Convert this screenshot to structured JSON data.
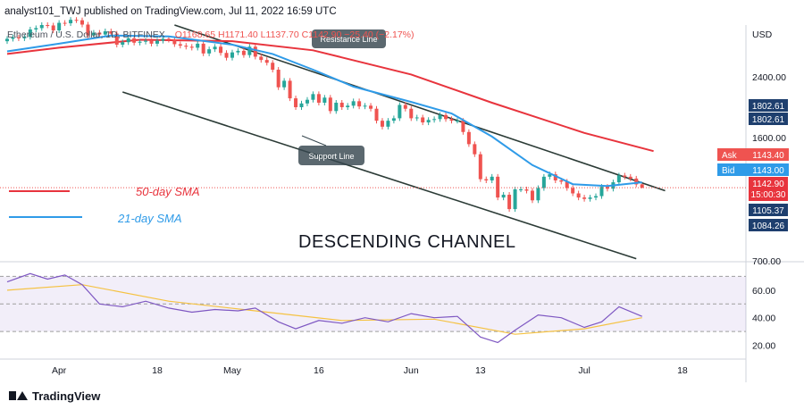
{
  "header": {
    "published": "analyst101_TWJ published on TradingView.com, Jul 11, 2022 16:59 UTC",
    "symbol": "Ethereum / U.S. Dollar, 1D, BITFINEX",
    "ohlc": "O1168.65  H1171.40  L1137.70  C1142.90  −25.40 (−2.17%)"
  },
  "currency": "USD",
  "annotations": {
    "resistance": "Resistance Line",
    "support": "Support Line",
    "channel": "DESCENDING CHANNEL",
    "sma50": "50-day SMA",
    "sma21": "21-day SMA"
  },
  "colors": {
    "sma50": "#e8343d",
    "sma21": "#2f9be8",
    "up": "#26a69a",
    "down": "#ef5350",
    "channel": "#2b3b36",
    "rsi": "#7e57c2",
    "rsi_ma": "#f5c242",
    "ask": "#ef5350",
    "bid": "#2f9be8",
    "level_box": "#1e3f6e",
    "price_box": "#e8343d"
  },
  "price_labels": {
    "ask_label": "Ask",
    "ask_value": "1143.40",
    "bid_label": "Bid",
    "bid_value": "1143.00",
    "last": "1142.90",
    "countdown": "15:00:30",
    "levels": [
      "1802.61",
      "1802.61",
      "1105.37",
      "1084.26"
    ]
  },
  "footer": {
    "brand": "TradingView"
  },
  "chart_data": {
    "type": "candlestick",
    "price_axis": {
      "ticks": [
        2400,
        1600,
        700
      ],
      "tick_labels": [
        "2400.00",
        "1600.00",
        "700.00"
      ],
      "scale": "log",
      "ylim": [
        700,
        3400
      ]
    },
    "rsi_axis": {
      "ticks": [
        60,
        40,
        20
      ],
      "tick_labels": [
        "60.00",
        "40.00",
        "20.00"
      ],
      "ylim": [
        10,
        80
      ],
      "band": [
        30,
        70
      ]
    },
    "x_axis": {
      "tick_labels": [
        "Apr",
        "18",
        "May",
        "16",
        "Jun",
        "13",
        "Jul",
        "18"
      ],
      "tick_dates": [
        "2022-04-01",
        "2022-04-18",
        "2022-05-01",
        "2022-05-16",
        "2022-06-01",
        "2022-06-13",
        "2022-07-01",
        "2022-07-18"
      ],
      "range": [
        "2022-03-23",
        "2022-07-29"
      ]
    },
    "candles": [
      {
        "date": "2022-03-23",
        "open": 3050,
        "close": 3100
      },
      {
        "date": "2022-03-24",
        "open": 3100,
        "close": 3130
      },
      {
        "date": "2022-03-25",
        "open": 3130,
        "close": 3110
      },
      {
        "date": "2022-03-26",
        "open": 3110,
        "close": 3140
      },
      {
        "date": "2022-03-27",
        "open": 3140,
        "close": 3300
      },
      {
        "date": "2022-03-28",
        "open": 3300,
        "close": 3330
      },
      {
        "date": "2022-03-29",
        "open": 3330,
        "close": 3400
      },
      {
        "date": "2022-03-30",
        "open": 3400,
        "close": 3390
      },
      {
        "date": "2022-03-31",
        "open": 3390,
        "close": 3280
      },
      {
        "date": "2022-04-01",
        "open": 3280,
        "close": 3450
      },
      {
        "date": "2022-04-02",
        "open": 3450,
        "close": 3440
      },
      {
        "date": "2022-04-03",
        "open": 3440,
        "close": 3520
      },
      {
        "date": "2022-04-04",
        "open": 3520,
        "close": 3510
      },
      {
        "date": "2022-04-05",
        "open": 3510,
        "close": 3410
      },
      {
        "date": "2022-04-06",
        "open": 3410,
        "close": 3170
      },
      {
        "date": "2022-04-07",
        "open": 3170,
        "close": 3230
      },
      {
        "date": "2022-04-08",
        "open": 3230,
        "close": 3190
      },
      {
        "date": "2022-04-09",
        "open": 3190,
        "close": 3260
      },
      {
        "date": "2022-04-10",
        "open": 3260,
        "close": 3210
      },
      {
        "date": "2022-04-11",
        "open": 3210,
        "close": 2980
      },
      {
        "date": "2022-04-12",
        "open": 2980,
        "close": 3030
      },
      {
        "date": "2022-04-13",
        "open": 3030,
        "close": 3110
      },
      {
        "date": "2022-04-14",
        "open": 3110,
        "close": 3020
      },
      {
        "date": "2022-04-15",
        "open": 3020,
        "close": 3040
      },
      {
        "date": "2022-04-16",
        "open": 3040,
        "close": 3060
      },
      {
        "date": "2022-04-17",
        "open": 3060,
        "close": 3000
      },
      {
        "date": "2022-04-18",
        "open": 3000,
        "close": 3060
      },
      {
        "date": "2022-04-19",
        "open": 3060,
        "close": 3100
      },
      {
        "date": "2022-04-20",
        "open": 3100,
        "close": 3080
      },
      {
        "date": "2022-04-21",
        "open": 3080,
        "close": 2990
      },
      {
        "date": "2022-04-22",
        "open": 2990,
        "close": 2960
      },
      {
        "date": "2022-04-23",
        "open": 2960,
        "close": 2940
      },
      {
        "date": "2022-04-24",
        "open": 2940,
        "close": 2920
      },
      {
        "date": "2022-04-25",
        "open": 2920,
        "close": 3000
      },
      {
        "date": "2022-04-26",
        "open": 3000,
        "close": 2810
      },
      {
        "date": "2022-04-27",
        "open": 2810,
        "close": 2890
      },
      {
        "date": "2022-04-28",
        "open": 2890,
        "close": 2940
      },
      {
        "date": "2022-04-29",
        "open": 2940,
        "close": 2820
      },
      {
        "date": "2022-04-30",
        "open": 2820,
        "close": 2730
      },
      {
        "date": "2022-05-01",
        "open": 2730,
        "close": 2830
      },
      {
        "date": "2022-05-02",
        "open": 2830,
        "close": 2860
      },
      {
        "date": "2022-05-03",
        "open": 2860,
        "close": 2780
      },
      {
        "date": "2022-05-04",
        "open": 2780,
        "close": 2940
      },
      {
        "date": "2022-05-05",
        "open": 2940,
        "close": 2750
      },
      {
        "date": "2022-05-06",
        "open": 2750,
        "close": 2690
      },
      {
        "date": "2022-05-07",
        "open": 2690,
        "close": 2640
      },
      {
        "date": "2022-05-08",
        "open": 2640,
        "close": 2520
      },
      {
        "date": "2022-05-09",
        "open": 2520,
        "close": 2240
      },
      {
        "date": "2022-05-10",
        "open": 2240,
        "close": 2340
      },
      {
        "date": "2022-05-11",
        "open": 2340,
        "close": 2080
      },
      {
        "date": "2022-05-12",
        "open": 2080,
        "close": 1960
      },
      {
        "date": "2022-05-13",
        "open": 1960,
        "close": 2010
      },
      {
        "date": "2022-05-14",
        "open": 2010,
        "close": 2060
      },
      {
        "date": "2022-05-15",
        "open": 2060,
        "close": 2140
      },
      {
        "date": "2022-05-16",
        "open": 2140,
        "close": 2020
      },
      {
        "date": "2022-05-17",
        "open": 2020,
        "close": 2090
      },
      {
        "date": "2022-05-18",
        "open": 2090,
        "close": 1910
      },
      {
        "date": "2022-05-19",
        "open": 1910,
        "close": 2020
      },
      {
        "date": "2022-05-20",
        "open": 2020,
        "close": 1960
      },
      {
        "date": "2022-05-21",
        "open": 1960,
        "close": 1980
      },
      {
        "date": "2022-05-22",
        "open": 1980,
        "close": 2040
      },
      {
        "date": "2022-05-23",
        "open": 2040,
        "close": 1970
      },
      {
        "date": "2022-05-24",
        "open": 1970,
        "close": 1980
      },
      {
        "date": "2022-05-25",
        "open": 1980,
        "close": 1940
      },
      {
        "date": "2022-05-26",
        "open": 1940,
        "close": 1790
      },
      {
        "date": "2022-05-27",
        "open": 1790,
        "close": 1720
      },
      {
        "date": "2022-05-28",
        "open": 1720,
        "close": 1790
      },
      {
        "date": "2022-05-29",
        "open": 1790,
        "close": 1820
      },
      {
        "date": "2022-05-30",
        "open": 1820,
        "close": 1990
      },
      {
        "date": "2022-05-31",
        "open": 1990,
        "close": 1940
      },
      {
        "date": "2022-06-01",
        "open": 1940,
        "close": 1820
      },
      {
        "date": "2022-06-02",
        "open": 1820,
        "close": 1830
      },
      {
        "date": "2022-06-03",
        "open": 1830,
        "close": 1770
      },
      {
        "date": "2022-06-04",
        "open": 1770,
        "close": 1800
      },
      {
        "date": "2022-06-05",
        "open": 1800,
        "close": 1810
      },
      {
        "date": "2022-06-06",
        "open": 1810,
        "close": 1860
      },
      {
        "date": "2022-06-07",
        "open": 1860,
        "close": 1810
      },
      {
        "date": "2022-06-08",
        "open": 1810,
        "close": 1790
      },
      {
        "date": "2022-06-09",
        "open": 1790,
        "close": 1790
      },
      {
        "date": "2022-06-10",
        "open": 1790,
        "close": 1660
      },
      {
        "date": "2022-06-11",
        "open": 1660,
        "close": 1530
      },
      {
        "date": "2022-06-12",
        "open": 1530,
        "close": 1430
      },
      {
        "date": "2022-06-13",
        "open": 1430,
        "close": 1210
      },
      {
        "date": "2022-06-14",
        "open": 1210,
        "close": 1200
      },
      {
        "date": "2022-06-15",
        "open": 1200,
        "close": 1230
      },
      {
        "date": "2022-06-16",
        "open": 1230,
        "close": 1070
      },
      {
        "date": "2022-06-17",
        "open": 1070,
        "close": 1090
      },
      {
        "date": "2022-06-18",
        "open": 1090,
        "close": 990
      },
      {
        "date": "2022-06-19",
        "open": 990,
        "close": 1130
      },
      {
        "date": "2022-06-20",
        "open": 1130,
        "close": 1130
      },
      {
        "date": "2022-06-21",
        "open": 1130,
        "close": 1120
      },
      {
        "date": "2022-06-22",
        "open": 1120,
        "close": 1050
      },
      {
        "date": "2022-06-23",
        "open": 1050,
        "close": 1140
      },
      {
        "date": "2022-06-24",
        "open": 1140,
        "close": 1230
      },
      {
        "date": "2022-06-25",
        "open": 1230,
        "close": 1250
      },
      {
        "date": "2022-06-26",
        "open": 1250,
        "close": 1200
      },
      {
        "date": "2022-06-27",
        "open": 1200,
        "close": 1190
      },
      {
        "date": "2022-06-28",
        "open": 1190,
        "close": 1140
      },
      {
        "date": "2022-06-29",
        "open": 1140,
        "close": 1100
      },
      {
        "date": "2022-06-30",
        "open": 1100,
        "close": 1070
      },
      {
        "date": "2022-07-01",
        "open": 1070,
        "close": 1060
      },
      {
        "date": "2022-07-02",
        "open": 1060,
        "close": 1070
      },
      {
        "date": "2022-07-03",
        "open": 1070,
        "close": 1080
      },
      {
        "date": "2022-07-04",
        "open": 1080,
        "close": 1150
      },
      {
        "date": "2022-07-05",
        "open": 1150,
        "close": 1135
      },
      {
        "date": "2022-07-06",
        "open": 1135,
        "close": 1185
      },
      {
        "date": "2022-07-07",
        "open": 1185,
        "close": 1240
      },
      {
        "date": "2022-07-08",
        "open": 1240,
        "close": 1230
      },
      {
        "date": "2022-07-09",
        "open": 1230,
        "close": 1215
      },
      {
        "date": "2022-07-10",
        "open": 1215,
        "close": 1168
      },
      {
        "date": "2022-07-11",
        "open": 1168.65,
        "close": 1142.9,
        "high": 1171.4,
        "low": 1137.7
      }
    ],
    "sma21": {
      "dates": [
        "2022-03-23",
        "2022-04-01",
        "2022-04-10",
        "2022-04-20",
        "2022-05-01",
        "2022-05-08",
        "2022-05-15",
        "2022-05-22",
        "2022-06-01",
        "2022-06-08",
        "2022-06-15",
        "2022-06-22",
        "2022-06-29",
        "2022-07-05",
        "2022-07-11"
      ],
      "values": [
        2850,
        3000,
        3170,
        3150,
        2980,
        2800,
        2520,
        2250,
        2030,
        1880,
        1610,
        1330,
        1170,
        1155,
        1185
      ]
    },
    "sma50": {
      "dates": [
        "2022-03-23",
        "2022-04-01",
        "2022-04-15",
        "2022-05-01",
        "2022-05-15",
        "2022-06-01",
        "2022-06-15",
        "2022-07-01",
        "2022-07-13"
      ],
      "values": [
        2800,
        2920,
        3080,
        3050,
        2870,
        2440,
        2020,
        1650,
        1460
      ]
    },
    "resistance_line": [
      {
        "date": "2022-04-21",
        "value": 3400
      },
      {
        "date": "2022-07-15",
        "value": 1120
      }
    ],
    "support_line": [
      {
        "date": "2022-04-12",
        "value": 2170
      },
      {
        "date": "2022-07-10",
        "value": 710
      }
    ],
    "rsi": {
      "dates": [
        "2022-03-23",
        "2022-03-27",
        "2022-03-30",
        "2022-04-02",
        "2022-04-05",
        "2022-04-08",
        "2022-04-12",
        "2022-04-16",
        "2022-04-20",
        "2022-04-24",
        "2022-04-28",
        "2022-05-02",
        "2022-05-05",
        "2022-05-09",
        "2022-05-12",
        "2022-05-16",
        "2022-05-20",
        "2022-05-24",
        "2022-05-28",
        "2022-06-01",
        "2022-06-05",
        "2022-06-09",
        "2022-06-13",
        "2022-06-16",
        "2022-06-19",
        "2022-06-23",
        "2022-06-27",
        "2022-07-01",
        "2022-07-04",
        "2022-07-07",
        "2022-07-11"
      ],
      "values": [
        66,
        72,
        68,
        71,
        64,
        50,
        48,
        52,
        47,
        44,
        46,
        45,
        47,
        37,
        32,
        38,
        36,
        40,
        37,
        43,
        40,
        41,
        26,
        22,
        31,
        42,
        40,
        33,
        37,
        48,
        41
      ]
    },
    "rsi_ma": {
      "dates": [
        "2022-03-23",
        "2022-04-05",
        "2022-04-20",
        "2022-05-05",
        "2022-05-20",
        "2022-06-05",
        "2022-06-19",
        "2022-07-01",
        "2022-07-11"
      ],
      "values": [
        60,
        64,
        52,
        45,
        38,
        39,
        28,
        32,
        40
      ]
    }
  }
}
